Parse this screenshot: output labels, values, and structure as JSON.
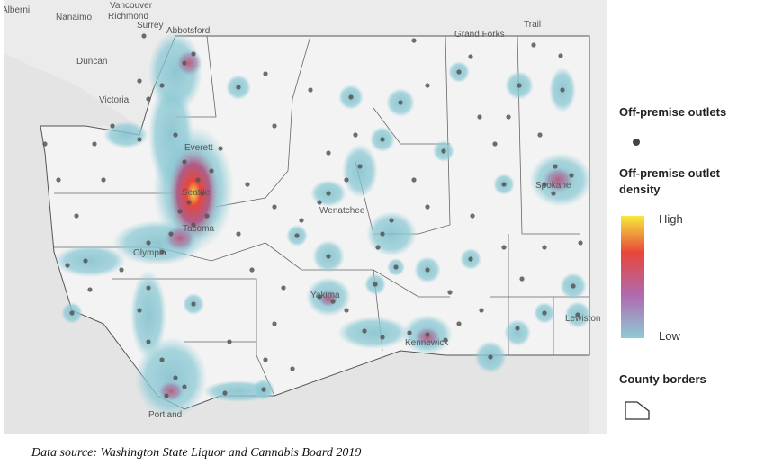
{
  "map": {
    "labels": [
      "Alberni",
      "Nanaimo",
      "Vancouver",
      "Richmond",
      "Surrey",
      "Abbotsford",
      "Duncan",
      "Victoria",
      "Grand Forks",
      "Trail",
      "Everett",
      "Seattle",
      "Tacoma",
      "Olympia",
      "Wenatchee",
      "Spokane",
      "Yakima",
      "Kennewick",
      "Lewiston",
      "Portland"
    ]
  },
  "legend": {
    "outlets": "Off-premise outlets",
    "density": "Off-premise outlet density",
    "high": "High",
    "low": "Low",
    "borders": "County borders"
  },
  "caption": "Data source: Washington State Liquor and Cannabis Board 2019"
}
